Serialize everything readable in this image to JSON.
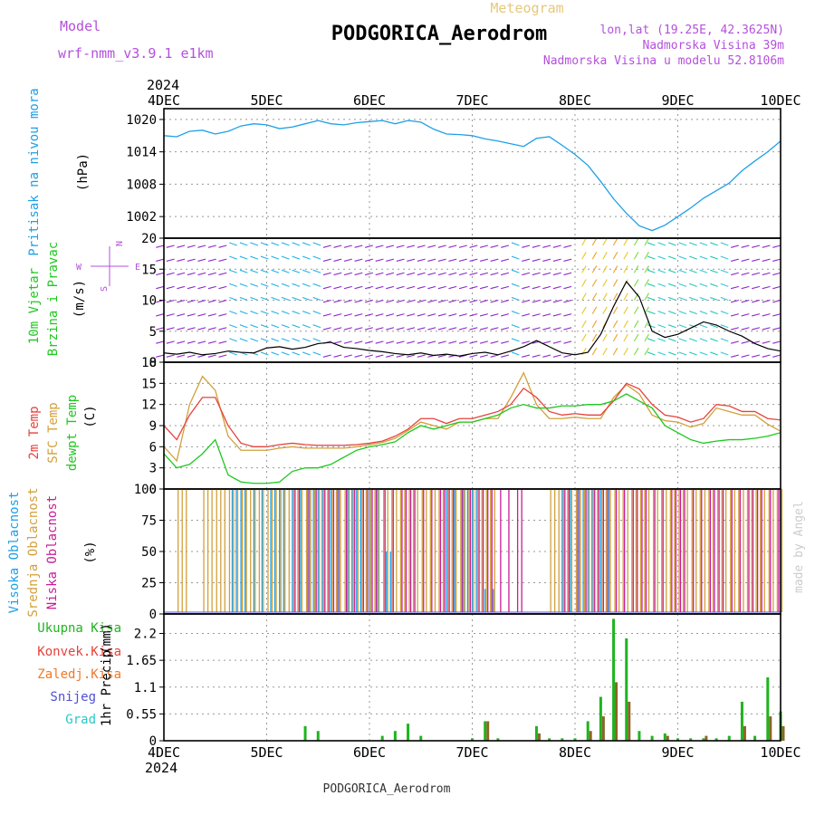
{
  "header": {
    "model_label": "Model",
    "model_value": "wrf-nmm_v3.9.1 e1km",
    "title": "Meteogram",
    "station": "PODGORICA_Aerodrom",
    "coords": "lon,lat (19.25E, 42.3625N)",
    "elevation": "Nadmorska Visina 39m",
    "model_elevation": "Nadmorska Visina u modelu 52.8106m",
    "footer_station": "PODGORICA_Aerodrom",
    "credit": "made by Angel"
  },
  "time_axis": {
    "year": "2024",
    "labels": [
      "4DEC",
      "5DEC",
      "6DEC",
      "7DEC",
      "8DEC",
      "9DEC",
      "10DEC"
    ]
  },
  "colors": {
    "pressure": "#1ea0e6",
    "temp2m": "#e6423c",
    "sfc_temp": "#d2a03c",
    "dewpoint": "#1ec81e",
    "high_cloud": "#1ea0e6",
    "mid_cloud": "#d2a03c",
    "low_cloud": "#c81e96",
    "total_precip": "#1eb41e",
    "conv_precip": "#e6423c",
    "frozen_precip": "#f07828",
    "snow": "#5050d2",
    "graupel": "#28c8c8",
    "wind_label": "#1ec81e",
    "compass": "#b450dc"
  },
  "chart_data": [
    {
      "type": "line",
      "panel": "pressure",
      "ylabel_lines": [
        "Pritisak na nivou mora"
      ],
      "unit": "(hPa)",
      "yticks": [
        "1020",
        "1014",
        "1008",
        "1002"
      ],
      "ylim": [
        998,
        1022
      ],
      "x_days": [
        0,
        0.125,
        0.25,
        0.375,
        0.5,
        0.625,
        0.75,
        0.875,
        1.0,
        1.125,
        1.25,
        1.375,
        1.5,
        1.625,
        1.75,
        1.875,
        2.0,
        2.125,
        2.25,
        2.375,
        2.5,
        2.625,
        2.75,
        2.875,
        3.0,
        3.125,
        3.25,
        3.375,
        3.5,
        3.625,
        3.75,
        3.875,
        4.0,
        4.125,
        4.25,
        4.375,
        4.5,
        4.625,
        4.75,
        4.875,
        5.0,
        5.125,
        5.25,
        5.375,
        5.5,
        5.625,
        5.75,
        5.875,
        6.0
      ],
      "series": [
        {
          "values": [
            1017,
            1016.8,
            1017.8,
            1018,
            1017.3,
            1017.8,
            1018.8,
            1019.2,
            1019,
            1018.3,
            1018.6,
            1019.2,
            1019.8,
            1019.2,
            1019,
            1019.4,
            1019.6,
            1019.8,
            1019.2,
            1019.8,
            1019.5,
            1018.2,
            1017.3,
            1017.2,
            1017,
            1016.4,
            1016,
            1015.5,
            1015,
            1016.5,
            1016.8,
            1015.2,
            1013.5,
            1011.5,
            1008.5,
            1005.3,
            1002.6,
            1000.3,
            999.4,
            1000.4,
            1002,
            1003.6,
            1005.4,
            1006.8,
            1008.2,
            1010.5,
            1012.3,
            1014,
            1016
          ]
        }
      ]
    },
    {
      "type": "barbs",
      "panel": "wind",
      "ylabel_lines": [
        "10m Vjetar",
        "Brzina i Pravac"
      ],
      "unit": "(m/s)",
      "compass": [
        "N",
        "S",
        "W",
        "E"
      ],
      "yticks": [
        "20",
        "15",
        "10",
        "5",
        "0"
      ],
      "ylim": [
        0,
        20
      ],
      "x_days": [
        0,
        0.125,
        0.25,
        0.375,
        0.5,
        0.625,
        0.75,
        0.875,
        1.0,
        1.125,
        1.25,
        1.375,
        1.5,
        1.625,
        1.75,
        1.875,
        2.0,
        2.125,
        2.25,
        2.375,
        2.5,
        2.625,
        2.75,
        2.875,
        3.0,
        3.125,
        3.25,
        3.375,
        3.5,
        3.625,
        3.75,
        3.875,
        4.0,
        4.125,
        4.25,
        4.375,
        4.5,
        4.625,
        4.75,
        4.875,
        5.0,
        5.125,
        5.25,
        5.375,
        5.5,
        5.625,
        5.75,
        5.875,
        6.0
      ],
      "series": [
        {
          "name": "speed",
          "values": [
            1.5,
            1.3,
            1.6,
            1.2,
            1.4,
            1.8,
            1.6,
            1.5,
            2.3,
            2.5,
            2.1,
            2.4,
            3.0,
            3.2,
            2.4,
            2.2,
            1.9,
            1.7,
            1.4,
            1.2,
            1.5,
            1.1,
            1.3,
            1.0,
            1.4,
            1.6,
            1.2,
            1.8,
            2.5,
            3.5,
            2.5,
            1.5,
            1.2,
            1.6,
            4.5,
            9.0,
            13.0,
            10.5,
            5.0,
            4.0,
            4.5,
            5.5,
            6.5,
            6.0,
            5.0,
            4.2,
            3.0,
            2.2,
            1.8
          ]
        }
      ]
    },
    {
      "type": "line",
      "panel": "temperature",
      "ylabel_lines": [
        "2m Temp",
        "SFC Temp",
        "dewpt Temp"
      ],
      "unit": "(C)",
      "yticks": [
        "18",
        "15",
        "12",
        "9",
        "6",
        "3",
        "0"
      ],
      "ylim": [
        0,
        18
      ],
      "x_days": [
        0,
        0.125,
        0.25,
        0.375,
        0.5,
        0.625,
        0.75,
        0.875,
        1.0,
        1.125,
        1.25,
        1.375,
        1.5,
        1.625,
        1.75,
        1.875,
        2.0,
        2.125,
        2.25,
        2.375,
        2.5,
        2.625,
        2.75,
        2.875,
        3.0,
        3.125,
        3.25,
        3.375,
        3.5,
        3.625,
        3.75,
        3.875,
        4.0,
        4.125,
        4.25,
        4.375,
        4.5,
        4.625,
        4.75,
        4.875,
        5.0,
        5.125,
        5.25,
        5.375,
        5.5,
        5.625,
        5.75,
        5.875,
        6.0
      ],
      "series": [
        {
          "name": "2m Temp",
          "values": [
            9,
            7,
            10.5,
            13,
            13,
            9,
            6.5,
            6,
            6,
            6.3,
            6.5,
            6.3,
            6.2,
            6.2,
            6.2,
            6.3,
            6.5,
            6.8,
            7.5,
            8.5,
            10,
            10,
            9.3,
            10,
            10,
            10.5,
            11,
            12,
            14.3,
            13,
            11,
            10.5,
            10.7,
            10.5,
            10.5,
            12.5,
            15,
            14.2,
            12,
            10.5,
            10.2,
            9.5,
            10,
            12,
            11.8,
            11,
            11,
            10,
            9.8
          ]
        },
        {
          "name": "SFC Temp",
          "values": [
            6,
            4,
            12,
            16,
            14,
            7.5,
            5.5,
            5.5,
            5.5,
            5.8,
            6,
            5.8,
            5.8,
            5.8,
            5.8,
            6,
            6.3,
            6.6,
            7.2,
            8.3,
            9.5,
            9,
            8.5,
            9.5,
            9.5,
            10,
            10,
            13,
            16.5,
            12,
            10,
            10,
            10.2,
            10,
            10,
            13,
            14.8,
            13.5,
            10.5,
            9.7,
            9.5,
            8.8,
            9.3,
            11.5,
            11,
            10.5,
            10.5,
            9.2,
            8.2
          ]
        },
        {
          "name": "dewpt Temp",
          "values": [
            5,
            3,
            3.5,
            5,
            7,
            2,
            1,
            0.8,
            0.8,
            1,
            2.5,
            3,
            3,
            3.5,
            4.5,
            5.5,
            6,
            6.3,
            6.7,
            8,
            9,
            8.5,
            9,
            9.5,
            9.5,
            10,
            10.5,
            11.5,
            12,
            11.5,
            11.5,
            11.8,
            11.8,
            12,
            12,
            12.5,
            13.5,
            12.5,
            11.5,
            9,
            8,
            7,
            6.5,
            6.8,
            7,
            7,
            7.2,
            7.5,
            8
          ]
        }
      ]
    },
    {
      "type": "bar",
      "panel": "clouds",
      "ylabel_lines": [
        "Visoka Oblacnost",
        "Srednja Oblacnost",
        "Niska Oblacnost"
      ],
      "unit": "(%)",
      "yticks": [
        "100",
        "75",
        "50",
        "25",
        "0"
      ],
      "ylim": [
        0,
        100
      ],
      "x_days": [
        0,
        0.125,
        0.25,
        0.375,
        0.5,
        0.625,
        0.75,
        0.875,
        1.0,
        1.125,
        1.25,
        1.375,
        1.5,
        1.625,
        1.75,
        1.875,
        2.0,
        2.125,
        2.25,
        2.375,
        2.5,
        2.625,
        2.75,
        2.875,
        3.0,
        3.125,
        3.25,
        3.375,
        3.5,
        3.625,
        3.75,
        3.875,
        4.0,
        4.125,
        4.25,
        4.375,
        4.5,
        4.625,
        4.75,
        4.875,
        5.0,
        5.125,
        5.25,
        5.375,
        5.5,
        5.625,
        5.75,
        5.875,
        6.0
      ],
      "series": [
        {
          "name": "Visoka Oblacnost",
          "values": [
            0,
            0,
            0,
            0,
            0,
            100,
            100,
            100,
            100,
            100,
            100,
            100,
            100,
            100,
            100,
            100,
            100,
            50,
            0,
            0,
            0,
            0,
            100,
            100,
            100,
            20,
            0,
            0,
            0,
            0,
            0,
            100,
            100,
            100,
            100,
            0,
            0,
            0,
            0,
            0,
            0,
            0,
            0,
            0,
            0,
            0,
            0,
            0,
            0
          ]
        },
        {
          "name": "Srednja Oblacnost",
          "values": [
            0,
            100,
            0,
            100,
            100,
            100,
            100,
            100,
            100,
            100,
            100,
            100,
            100,
            100,
            100,
            100,
            100,
            100,
            100,
            100,
            100,
            100,
            100,
            100,
            100,
            100,
            0,
            0,
            0,
            0,
            100,
            100,
            100,
            100,
            100,
            100,
            100,
            100,
            100,
            100,
            100,
            100,
            100,
            100,
            100,
            100,
            100,
            100,
            100
          ]
        },
        {
          "name": "Niska Oblacnost",
          "values": [
            0,
            0,
            0,
            0,
            0,
            0,
            0,
            0,
            0,
            0,
            100,
            100,
            100,
            100,
            100,
            100,
            100,
            100,
            100,
            100,
            100,
            100,
            100,
            100,
            100,
            100,
            100,
            100,
            0,
            0,
            0,
            100,
            100,
            100,
            100,
            100,
            100,
            100,
            100,
            100,
            100,
            100,
            100,
            100,
            100,
            100,
            100,
            100,
            100
          ]
        }
      ]
    },
    {
      "type": "bar",
      "panel": "precipitation",
      "ylabel_lines": [
        "1hr Precip"
      ],
      "unit": "(mm)",
      "legend": [
        "Ukupna Kisa",
        "Konvek.Kisa",
        "Zaledj.Kisa",
        "Snijeg",
        "Grad"
      ],
      "yticks": [
        "2.2",
        "1.65",
        "1.1",
        "0.55",
        "0"
      ],
      "ylim": [
        0,
        2.6
      ],
      "x_days": [
        0,
        0.125,
        0.25,
        0.375,
        0.5,
        0.625,
        0.75,
        0.875,
        1.0,
        1.125,
        1.25,
        1.375,
        1.5,
        1.625,
        1.75,
        1.875,
        2.0,
        2.125,
        2.25,
        2.375,
        2.5,
        2.625,
        2.75,
        2.875,
        3.0,
        3.125,
        3.25,
        3.375,
        3.5,
        3.625,
        3.75,
        3.875,
        4.0,
        4.125,
        4.25,
        4.375,
        4.5,
        4.625,
        4.75,
        4.875,
        5.0,
        5.125,
        5.25,
        5.375,
        5.5,
        5.625,
        5.75,
        5.875,
        6.0
      ],
      "series": [
        {
          "name": "Ukupna Kisa",
          "values": [
            0,
            0,
            0,
            0,
            0,
            0,
            0,
            0,
            0,
            0,
            0,
            0.3,
            0.2,
            0,
            0,
            0,
            0,
            0.1,
            0.2,
            0.35,
            0.1,
            0,
            0,
            0,
            0.05,
            0.4,
            0.05,
            0,
            0,
            0.3,
            0.05,
            0.05,
            0.05,
            0.4,
            0.9,
            2.5,
            2.1,
            0.2,
            0.1,
            0.15,
            0.05,
            0.05,
            0.05,
            0.05,
            0.1,
            0.8,
            0.1,
            1.3,
            0.6
          ]
        },
        {
          "name": "Konvek.Kisa",
          "values": [
            0,
            0,
            0,
            0,
            0,
            0,
            0,
            0,
            0,
            0,
            0,
            0,
            0,
            0,
            0,
            0,
            0,
            0,
            0,
            0,
            0,
            0,
            0,
            0,
            0,
            0.4,
            0,
            0,
            0,
            0.15,
            0,
            0,
            0,
            0.2,
            0.5,
            1.2,
            0.8,
            0,
            0,
            0.1,
            0,
            0,
            0.1,
            0,
            0,
            0.3,
            0,
            0.5,
            0.3
          ]
        }
      ]
    }
  ]
}
